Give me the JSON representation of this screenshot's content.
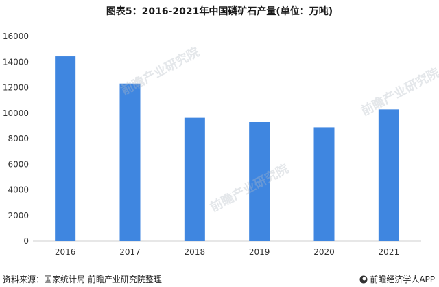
{
  "title": "图表5：2016-2021年中国磷矿石产量(单位：万吨)",
  "source": "资料来源：国家统计局 前瞻产业研究院整理",
  "brand": "前瞻经济学人APP",
  "watermark": "前瞻产业研究院",
  "chart_data": {
    "type": "bar",
    "title": "图表5：2016-2021年中国磷矿石产量(单位：万吨)",
    "categories": [
      "2016",
      "2017",
      "2018",
      "2019",
      "2020",
      "2021"
    ],
    "values": [
      14440,
      12310,
      9630,
      9330,
      8890,
      10290
    ],
    "ylim": [
      0,
      16000
    ],
    "yticks": [
      0,
      2000,
      4000,
      6000,
      8000,
      10000,
      12000,
      14000,
      16000
    ],
    "bar_color": "#3f86e0",
    "grid": false,
    "legend": "none"
  }
}
